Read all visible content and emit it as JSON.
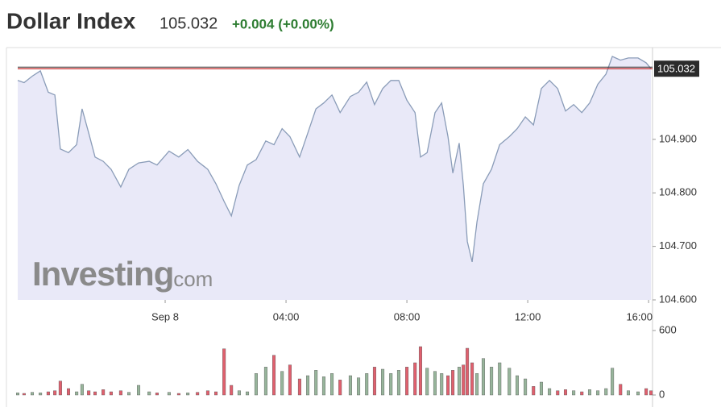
{
  "header": {
    "title": "Dollar Index",
    "price": 105.032,
    "change": "+0.004 (+0.00%)"
  },
  "chart_data": {
    "type": "area",
    "watermark": {
      "brand": "Investing",
      "suffix": ".com"
    },
    "last_value": 105.032,
    "line_color": "#8a9cb8",
    "fill_color": "#e9e9f8",
    "last_value_color": "#c62828",
    "x": [
      -4.88,
      -4.67,
      -4.4,
      -4.13,
      -3.87,
      -3.65,
      -3.47,
      -3.2,
      -2.93,
      -2.75,
      -2.53,
      -2.32,
      -2.05,
      -1.79,
      -1.47,
      -1.2,
      -0.88,
      -0.53,
      -0.27,
      0.13,
      0.45,
      0.75,
      1.07,
      1.41,
      1.68,
      1.95,
      2.19,
      2.45,
      2.72,
      3.01,
      3.33,
      3.6,
      3.87,
      4.13,
      4.45,
      4.72,
      4.99,
      5.25,
      5.52,
      5.79,
      6.13,
      6.4,
      6.67,
      6.93,
      7.2,
      7.47,
      7.73,
      8.0,
      8.27,
      8.45,
      8.67,
      8.93,
      9.15,
      9.36,
      9.52,
      9.73,
      9.87,
      10.0,
      10.16,
      10.32,
      10.53,
      10.8,
      11.07,
      11.39,
      11.65,
      11.92,
      12.19,
      12.45,
      12.72,
      12.99,
      13.25,
      13.52,
      13.79,
      14.05,
      14.32,
      14.59,
      14.8,
      15.07,
      15.33,
      15.65,
      15.92,
      16.08
    ],
    "values": [
      105.01,
      105.006,
      105.018,
      105.028,
      104.988,
      104.983,
      104.882,
      104.875,
      104.89,
      104.957,
      104.912,
      104.867,
      104.859,
      104.844,
      104.811,
      104.844,
      104.856,
      104.859,
      104.852,
      104.878,
      104.867,
      104.881,
      104.859,
      104.844,
      104.817,
      104.784,
      104.757,
      104.814,
      104.852,
      104.862,
      104.897,
      104.89,
      104.92,
      104.905,
      104.867,
      104.912,
      104.957,
      104.968,
      104.983,
      104.95,
      104.98,
      104.988,
      105.007,
      104.965,
      104.995,
      105.01,
      105.01,
      104.973,
      104.95,
      104.867,
      104.875,
      104.95,
      104.968,
      104.905,
      104.837,
      104.893,
      104.814,
      104.709,
      104.671,
      104.746,
      104.817,
      104.844,
      104.89,
      104.905,
      104.92,
      104.942,
      104.927,
      104.995,
      105.01,
      104.995,
      104.953,
      104.965,
      104.95,
      104.968,
      105.003,
      105.022,
      105.055,
      105.048,
      105.052,
      105.052,
      105.043,
      105.032
    ],
    "xlim": [
      -4.88,
      16.13
    ],
    "xticks": [
      {
        "value": 0,
        "label": "Sep 8"
      },
      {
        "value": 4,
        "label": "04:00"
      },
      {
        "value": 8,
        "label": "08:00"
      },
      {
        "value": 12,
        "label": "12:00"
      },
      {
        "value": 16,
        "label": "16:00"
      }
    ],
    "ylim": [
      104.6,
      105.07
    ],
    "yticks": [
      {
        "value": 104.6,
        "label": "104.600"
      },
      {
        "value": 104.7,
        "label": "104.700"
      },
      {
        "value": 104.8,
        "label": "104.800"
      },
      {
        "value": 104.9,
        "label": "104.900"
      }
    ],
    "volume": {
      "up_color": "#97b59b",
      "down_color": "#e0606e",
      "values": [
        20,
        15,
        25,
        20,
        30,
        40,
        130,
        60,
        30,
        100,
        40,
        30,
        50,
        30,
        40,
        25,
        90,
        30,
        20,
        25,
        15,
        20,
        25,
        40,
        30,
        430,
        90,
        40,
        30,
        200,
        260,
        370,
        220,
        280,
        150,
        180,
        230,
        170,
        200,
        140,
        180,
        160,
        200,
        260,
        240,
        200,
        230,
        260,
        300,
        450,
        250,
        220,
        200,
        180,
        230,
        260,
        280,
        435,
        300,
        200,
        340,
        260,
        300,
        250,
        180,
        150,
        80,
        120,
        60,
        40,
        50,
        40,
        30,
        50,
        40,
        60,
        250,
        100,
        40,
        30,
        60,
        40
      ],
      "ylim": [
        0,
        600
      ],
      "yticks": [
        0,
        600
      ]
    }
  }
}
